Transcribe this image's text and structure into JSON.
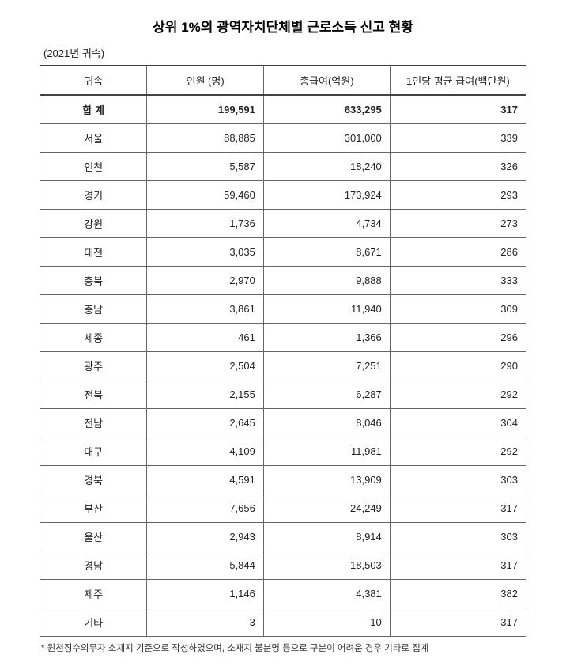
{
  "title": "상위 1%의 광역자치단체별 근로소득 신고 현황",
  "subtitle": "(2021년 귀속)",
  "columns": [
    "귀속",
    "인원 (명)",
    "총급여(억원)",
    "1인당 평균 급여(백만원)"
  ],
  "total_row": {
    "region": "합 계",
    "count": "199,591",
    "gross": "633,295",
    "avg": "317"
  },
  "rows": [
    {
      "region": "서울",
      "count": "88,885",
      "gross": "301,000",
      "avg": "339"
    },
    {
      "region": "인천",
      "count": "5,587",
      "gross": "18,240",
      "avg": "326"
    },
    {
      "region": "경기",
      "count": "59,460",
      "gross": "173,924",
      "avg": "293"
    },
    {
      "region": "강원",
      "count": "1,736",
      "gross": "4,734",
      "avg": "273"
    },
    {
      "region": "대전",
      "count": "3,035",
      "gross": "8,671",
      "avg": "286"
    },
    {
      "region": "충북",
      "count": "2,970",
      "gross": "9,888",
      "avg": "333"
    },
    {
      "region": "충남",
      "count": "3,861",
      "gross": "11,940",
      "avg": "309"
    },
    {
      "region": "세종",
      "count": "461",
      "gross": "1,366",
      "avg": "296"
    },
    {
      "region": "광주",
      "count": "2,504",
      "gross": "7,251",
      "avg": "290"
    },
    {
      "region": "전북",
      "count": "2,155",
      "gross": "6,287",
      "avg": "292"
    },
    {
      "region": "전남",
      "count": "2,645",
      "gross": "8,046",
      "avg": "304"
    },
    {
      "region": "대구",
      "count": "4,109",
      "gross": "11,981",
      "avg": "292"
    },
    {
      "region": "경북",
      "count": "4,591",
      "gross": "13,909",
      "avg": "303"
    },
    {
      "region": "부산",
      "count": "7,656",
      "gross": "24,249",
      "avg": "317"
    },
    {
      "region": "울산",
      "count": "2,943",
      "gross": "8,914",
      "avg": "303"
    },
    {
      "region": "경남",
      "count": "5,844",
      "gross": "18,503",
      "avg": "317"
    },
    {
      "region": "제주",
      "count": "1,146",
      "gross": "4,381",
      "avg": "382"
    },
    {
      "region": "기타",
      "count": "3",
      "gross": "10",
      "avg": "317"
    }
  ],
  "footnote": "* 원천징수의무자  소재지 기준으로 작성하였으며, 소재지 불분명 등으로 구분이 어려운 경우 기타로 집계"
}
